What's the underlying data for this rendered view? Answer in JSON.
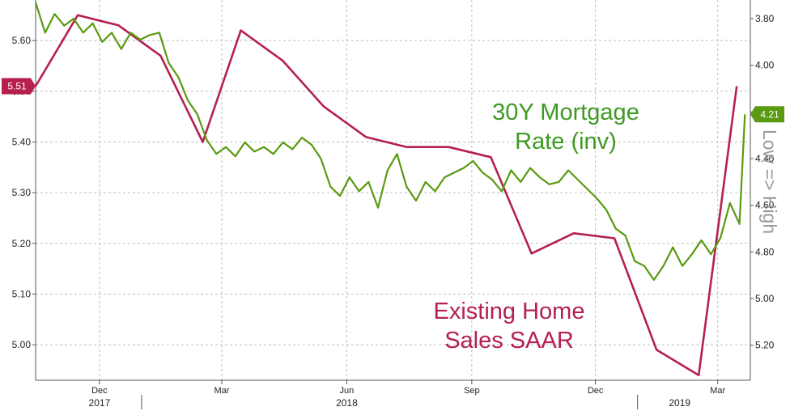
{
  "chart_data": {
    "type": "line",
    "colors": {
      "sales": "#b5204f",
      "mortgage": "#5a9a10"
    },
    "x": {
      "start": "2017-10-15",
      "end": "2019-03-25",
      "month_ticks": [
        {
          "date": "2017-12-01",
          "label": "Dec"
        },
        {
          "date": "2018-03-01",
          "label": "Mar"
        },
        {
          "date": "2018-06-01",
          "label": "Jun"
        },
        {
          "date": "2018-09-01",
          "label": "Sep"
        },
        {
          "date": "2018-12-01",
          "label": "Dec"
        },
        {
          "date": "2019-03-01",
          "label": "Mar"
        }
      ],
      "year_labels": [
        {
          "date": "2017-12-01",
          "label": "2017"
        },
        {
          "date": "2018-06-01",
          "label": "2018"
        },
        {
          "date": "2019-02-01",
          "label": "2019"
        }
      ]
    },
    "left_axis": {
      "ylim": [
        4.93,
        5.68
      ],
      "ticks": [
        "5.60",
        "5.50",
        "5.40",
        "5.30",
        "5.20",
        "5.10",
        "5.00"
      ]
    },
    "right_axis": {
      "inverted": true,
      "ylim": [
        3.72,
        5.35
      ],
      "ticks": [
        "3.80",
        "4.00",
        "4.20",
        "4.40",
        "4.60",
        "4.80",
        "5.00",
        "5.20"
      ]
    },
    "last_value_tags": {
      "sales": "5.51",
      "mortgage": "4.21"
    },
    "series": [
      {
        "name": "Existing Home Sales SAAR",
        "axis": "left",
        "points": [
          [
            "2017-10-15",
            5.51
          ],
          [
            "2017-11-15",
            5.65
          ],
          [
            "2017-12-15",
            5.63
          ],
          [
            "2018-01-15",
            5.57
          ],
          [
            "2018-02-15",
            5.4
          ],
          [
            "2018-03-15",
            5.62
          ],
          [
            "2018-04-15",
            5.56
          ],
          [
            "2018-05-15",
            5.47
          ],
          [
            "2018-06-15",
            5.41
          ],
          [
            "2018-07-15",
            5.39
          ],
          [
            "2018-08-15",
            5.39
          ],
          [
            "2018-09-15",
            5.37
          ],
          [
            "2018-10-15",
            5.18
          ],
          [
            "2018-11-15",
            5.22
          ],
          [
            "2018-12-15",
            5.21
          ],
          [
            "2019-01-15",
            4.99
          ],
          [
            "2019-02-15",
            4.94
          ],
          [
            "2019-03-15",
            5.51
          ]
        ]
      },
      {
        "name": "30Y Mortgage Rate (inv)",
        "axis": "right",
        "points": [
          [
            "2017-10-15",
            3.73
          ],
          [
            "2017-10-22",
            3.86
          ],
          [
            "2017-10-29",
            3.78
          ],
          [
            "2017-11-05",
            3.83
          ],
          [
            "2017-11-12",
            3.8
          ],
          [
            "2017-11-19",
            3.86
          ],
          [
            "2017-11-26",
            3.82
          ],
          [
            "2017-12-03",
            3.9
          ],
          [
            "2017-12-10",
            3.86
          ],
          [
            "2017-12-17",
            3.93
          ],
          [
            "2017-12-24",
            3.86
          ],
          [
            "2017-12-31",
            3.89
          ],
          [
            "2018-01-07",
            3.87
          ],
          [
            "2018-01-14",
            3.86
          ],
          [
            "2018-01-21",
            3.99
          ],
          [
            "2018-01-28",
            4.05
          ],
          [
            "2018-02-04",
            4.15
          ],
          [
            "2018-02-11",
            4.21
          ],
          [
            "2018-02-18",
            4.32
          ],
          [
            "2018-02-25",
            4.38
          ],
          [
            "2018-03-04",
            4.35
          ],
          [
            "2018-03-11",
            4.39
          ],
          [
            "2018-03-18",
            4.33
          ],
          [
            "2018-03-25",
            4.37
          ],
          [
            "2018-04-01",
            4.35
          ],
          [
            "2018-04-08",
            4.38
          ],
          [
            "2018-04-15",
            4.33
          ],
          [
            "2018-04-22",
            4.36
          ],
          [
            "2018-04-29",
            4.31
          ],
          [
            "2018-05-06",
            4.34
          ],
          [
            "2018-05-13",
            4.4
          ],
          [
            "2018-05-20",
            4.52
          ],
          [
            "2018-05-27",
            4.56
          ],
          [
            "2018-06-03",
            4.48
          ],
          [
            "2018-06-10",
            4.54
          ],
          [
            "2018-06-17",
            4.5
          ],
          [
            "2018-06-24",
            4.61
          ],
          [
            "2018-07-01",
            4.45
          ],
          [
            "2018-07-08",
            4.38
          ],
          [
            "2018-07-15",
            4.52
          ],
          [
            "2018-07-22",
            4.58
          ],
          [
            "2018-07-29",
            4.5
          ],
          [
            "2018-08-05",
            4.54
          ],
          [
            "2018-08-12",
            4.48
          ],
          [
            "2018-08-19",
            4.46
          ],
          [
            "2018-08-26",
            4.44
          ],
          [
            "2018-09-02",
            4.41
          ],
          [
            "2018-09-09",
            4.46
          ],
          [
            "2018-09-16",
            4.49
          ],
          [
            "2018-09-23",
            4.54
          ],
          [
            "2018-09-30",
            4.45
          ],
          [
            "2018-10-07",
            4.5
          ],
          [
            "2018-10-14",
            4.44
          ],
          [
            "2018-10-21",
            4.48
          ],
          [
            "2018-10-28",
            4.51
          ],
          [
            "2018-11-04",
            4.5
          ],
          [
            "2018-11-11",
            4.45
          ],
          [
            "2018-11-18",
            4.49
          ],
          [
            "2018-11-25",
            4.53
          ],
          [
            "2018-12-02",
            4.57
          ],
          [
            "2018-12-09",
            4.62
          ],
          [
            "2018-12-16",
            4.7
          ],
          [
            "2018-12-23",
            4.73
          ],
          [
            "2018-12-30",
            4.84
          ],
          [
            "2019-01-06",
            4.86
          ],
          [
            "2019-01-13",
            4.92
          ],
          [
            "2019-01-20",
            4.86
          ],
          [
            "2019-01-27",
            4.78
          ],
          [
            "2019-02-03",
            4.86
          ],
          [
            "2019-02-10",
            4.81
          ],
          [
            "2019-02-17",
            4.75
          ],
          [
            "2019-02-24",
            4.81
          ],
          [
            "2019-03-03",
            4.74
          ],
          [
            "2019-03-10",
            4.59
          ],
          [
            "2019-03-17",
            4.68
          ],
          [
            "2019-03-21",
            4.21
          ]
        ]
      }
    ],
    "annotations": {
      "mortgage_line1": "30Y Mortgage",
      "mortgage_line2": "Rate (inv)",
      "sales_line1": "Existing Home",
      "sales_line2": "Sales SAAR",
      "right_axis_side": "Low => High"
    }
  }
}
